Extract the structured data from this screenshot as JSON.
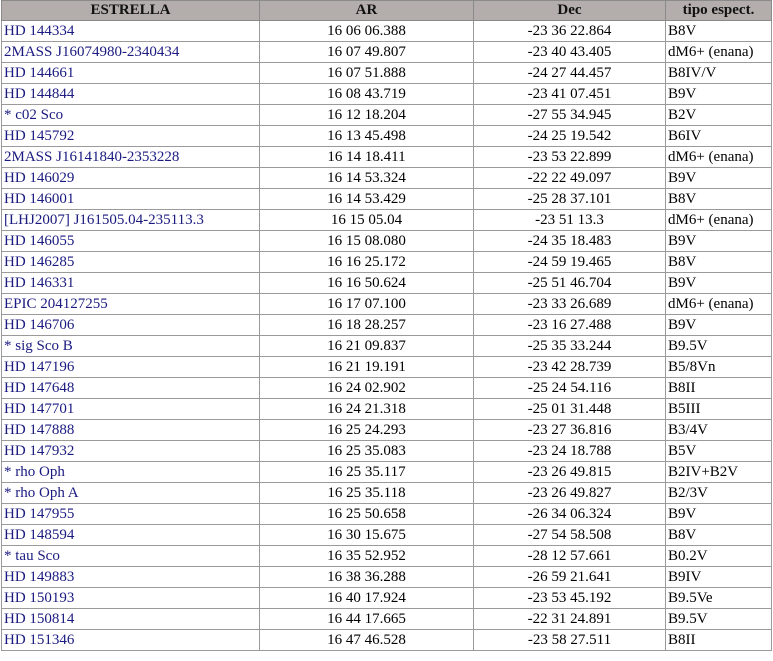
{
  "headers": [
    "ESTRELLA",
    "AR",
    "Dec",
    "tipo espect."
  ],
  "rows": [
    [
      "HD 144334",
      "16 06 06.388",
      "-23 36 22.864",
      "B8V"
    ],
    [
      "2MASS J16074980-2340434",
      "16 07 49.807",
      "-23 40 43.405",
      "dM6+ (enana)"
    ],
    [
      "HD 144661",
      "16 07 51.888",
      "-24 27 44.457",
      "B8IV/V"
    ],
    [
      "HD 144844",
      "16 08 43.719",
      "-23 41 07.451",
      "B9V"
    ],
    [
      "* c02 Sco",
      "16 12 18.204",
      "-27 55 34.945",
      "B2V"
    ],
    [
      "HD 145792",
      "16 13 45.498",
      "-24 25 19.542",
      "B6IV"
    ],
    [
      "2MASS J16141840-2353228",
      "16 14 18.411",
      "-23 53 22.899",
      "dM6+ (enana)"
    ],
    [
      "HD 146029",
      "16 14 53.324",
      "-22 22 49.097",
      "B9V"
    ],
    [
      "HD 146001",
      "16 14 53.429",
      "-25 28 37.101",
      "B8V"
    ],
    [
      "[LHJ2007] J161505.04-235113.3",
      "16 15 05.04",
      "-23 51 13.3",
      "dM6+ (enana)"
    ],
    [
      "HD 146055",
      "16 15 08.080",
      "-24 35 18.483",
      "B9V"
    ],
    [
      "HD 146285",
      "16 16 25.172",
      "-24 59 19.465",
      "B8V"
    ],
    [
      "HD 146331",
      "16 16 50.624",
      "-25 51 46.704",
      "B9V"
    ],
    [
      "EPIC 204127255",
      "16 17 07.100",
      "-23 33 26.689",
      "dM6+ (enana)"
    ],
    [
      "HD 146706",
      "16 18 28.257",
      "-23 16 27.488",
      "B9V"
    ],
    [
      "* sig Sco B",
      "16 21 09.837",
      "-25 35 33.244",
      "B9.5V"
    ],
    [
      "HD 147196",
      "16 21 19.191",
      "-23 42 28.739",
      "B5/8Vn"
    ],
    [
      "HD 147648",
      "16 24 02.902",
      "-25 24 54.116",
      "B8II"
    ],
    [
      "HD 147701",
      "16 24 21.318",
      "-25 01 31.448",
      "B5III"
    ],
    [
      "HD 147888",
      "16 25 24.293",
      "-23 27 36.816",
      "B3/4V"
    ],
    [
      "HD 147932",
      "16 25 35.083",
      "-23 24 18.788",
      "B5V"
    ],
    [
      "* rho Oph",
      "16 25 35.117",
      "-23 26 49.815",
      "B2IV+B2V"
    ],
    [
      "* rho Oph A",
      "16 25 35.118",
      "-23 26 49.827",
      "B2/3V"
    ],
    [
      "HD 147955",
      "16 25 50.658",
      "-26 34 06.324",
      "B9V"
    ],
    [
      "HD 148594",
      "16 30 15.675",
      "-27 54 58.508",
      "B8V"
    ],
    [
      "* tau Sco",
      "16 35 52.952",
      "-28 12 57.661",
      "B0.2V"
    ],
    [
      "HD 149883",
      "16 38 36.288",
      "-26 59 21.641",
      "B9IV"
    ],
    [
      "HD 150193",
      "16 40 17.924",
      "-23 53 45.192",
      "B9.5Ve"
    ],
    [
      "HD 150814",
      "16 44 17.665",
      "-22 31 24.891",
      "B9.5V"
    ],
    [
      "HD 151346",
      "16 47 46.528",
      "-23 58 27.511",
      "B8II"
    ]
  ],
  "colors": {
    "header_bg": "#b3adab",
    "name_text": "#1a1a80"
  }
}
